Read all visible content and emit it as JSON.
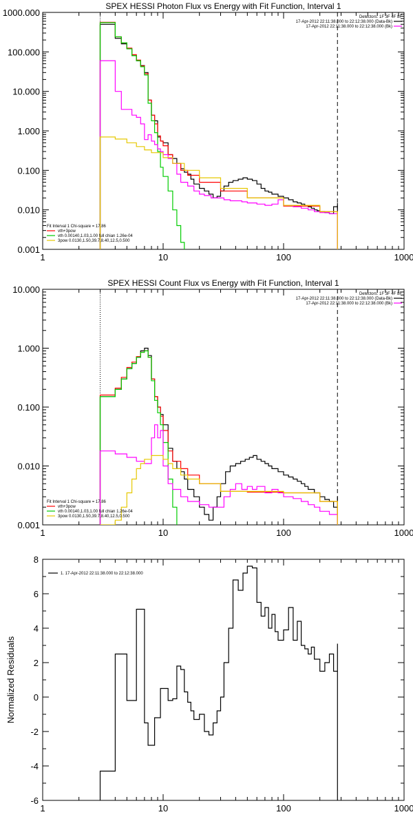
{
  "chart_data": [
    {
      "type": "line",
      "title": "SPEX HESSI Photon Flux vs Energy with Fit Function, Interval 1",
      "x_scale": "log",
      "y_scale": "log",
      "xlim": [
        1,
        1000
      ],
      "ylim": [
        0.001,
        1000
      ],
      "x_tick_labels": [
        "1",
        "10",
        "100",
        "1000"
      ],
      "y_tick_labels": [
        "0.001",
        "0.010",
        "0.100",
        "1.000",
        "10.000",
        "100.000",
        "1000.000"
      ],
      "legend_top_right": {
        "detectors": "Detectors: 1F 3F 4F 8F",
        "entries": [
          {
            "text": "17-Apr-2012 22:11:38.000 to 22:12:38.000 (Data-Bk)",
            "color": "#000000"
          },
          {
            "text": "17-Apr-2012 22:11:38.000 to 22:12:38.000 (Bk)",
            "color": "#ff00ff"
          }
        ]
      },
      "legend_bottom_left": {
        "header": "Fit Interval 1    Chi-square = 17.86",
        "entries": [
          {
            "text": "vth+3pow",
            "color": "#ff0000"
          },
          {
            "text": "vth 0.00140,1.03,1.00  full chian 1.26e-04",
            "color": "#00cc00"
          },
          {
            "text": "3pow 0.0130,1.50,39.7,8.40,12.5,0.500",
            "color": "#e6c800"
          }
        ]
      },
      "markers": {
        "dotted_x": 3.0,
        "dashed_x": 280
      },
      "series": [
        {
          "name": "17-Apr-2012 22:11:38.000 to 22:12:38.000 (Data-Bk)",
          "color": "#000000",
          "x": [
            3,
            3.5,
            4,
            4.5,
            5,
            5.5,
            6,
            6.5,
            7,
            7.5,
            8,
            8.5,
            9,
            9.5,
            10,
            11,
            12,
            13,
            14,
            15,
            16,
            17,
            18,
            20,
            22,
            24,
            26,
            28,
            30,
            32,
            35,
            38,
            42,
            46,
            50,
            55,
            60,
            65,
            70,
            75,
            80,
            90,
            100,
            110,
            120,
            130,
            140,
            150,
            160,
            170,
            180,
            190,
            200,
            220,
            240,
            260,
            280
          ],
          "y": [
            500,
            500,
            220,
            160,
            120,
            80,
            60,
            45,
            30,
            6,
            2.5,
            1.8,
            0.7,
            0.55,
            0.5,
            0.25,
            0.2,
            0.15,
            0.11,
            0.09,
            0.08,
            0.06,
            0.045,
            0.035,
            0.03,
            0.025,
            0.02,
            0.022,
            0.03,
            0.04,
            0.05,
            0.055,
            0.06,
            0.065,
            0.06,
            0.055,
            0.045,
            0.035,
            0.03,
            0.028,
            0.025,
            0.022,
            0.02,
            0.018,
            0.016,
            0.015,
            0.014,
            0.013,
            0.012,
            0.011,
            0.01,
            0.0095,
            0.009,
            0.0085,
            0.008,
            0.012,
            0.015
          ]
        },
        {
          "name": "vth+3pow",
          "color": "#ff0000",
          "x": [
            3,
            3.5,
            4,
            4.5,
            5,
            5.5,
            6,
            6.5,
            7,
            7.5,
            8,
            8.5,
            9,
            9.5,
            10,
            11,
            12,
            14,
            16,
            20,
            30,
            50,
            100,
            200,
            280
          ],
          "y": [
            560,
            560,
            240,
            170,
            125,
            85,
            62,
            44,
            28,
            6,
            2.5,
            1.5,
            0.75,
            0.55,
            0.42,
            0.25,
            0.15,
            0.1,
            0.075,
            0.05,
            0.03,
            0.02,
            0.0125,
            0.009,
            0.007
          ]
        },
        {
          "name": "vth",
          "color": "#00cc00",
          "x": [
            3,
            3.5,
            4,
            4.5,
            5,
            5.5,
            6,
            6.5,
            7,
            7.5,
            8,
            8.5,
            9,
            9.5,
            10,
            11,
            12,
            13,
            14,
            15
          ],
          "y": [
            550,
            550,
            240,
            170,
            120,
            80,
            60,
            42,
            26,
            5,
            1.8,
            0.9,
            0.3,
            0.12,
            0.07,
            0.03,
            0.01,
            0.004,
            0.0015,
            0.0009
          ]
        },
        {
          "name": "17-Apr-2012 22:11:38.000 to 22:12:38.000 (Bk)",
          "color": "#ff00ff",
          "x": [
            3,
            3.5,
            4,
            4.5,
            5,
            5.5,
            6,
            6.5,
            7,
            7.5,
            8,
            8.5,
            9,
            9.5,
            10,
            11,
            12,
            13,
            14,
            16,
            18,
            20,
            22,
            25,
            28,
            32,
            36,
            40,
            45,
            50,
            55,
            60,
            70,
            80,
            90,
            100,
            120,
            140,
            160,
            180,
            200,
            240,
            280
          ],
          "y": [
            60,
            60,
            10,
            3.5,
            3.5,
            2.5,
            2.2,
            1.5,
            0.6,
            0.8,
            0.55,
            0.45,
            0.35,
            0.3,
            0.25,
            0.2,
            0.15,
            0.08,
            0.05,
            0.04,
            0.03,
            0.025,
            0.023,
            0.02,
            0.02,
            0.018,
            0.017,
            0.017,
            0.016,
            0.015,
            0.015,
            0.014,
            0.013,
            0.014,
            0.018,
            0.013,
            0.012,
            0.011,
            0.01,
            0.009,
            0.0085,
            0.008,
            0.007
          ]
        },
        {
          "name": "3pow",
          "color": "#e6c800",
          "x": [
            3,
            3.5,
            4,
            5,
            6,
            7,
            8,
            10,
            12,
            15,
            20,
            30,
            50,
            100,
            200,
            280
          ],
          "y": [
            0.7,
            0.7,
            0.62,
            0.5,
            0.4,
            0.33,
            0.28,
            0.21,
            0.15,
            0.1,
            0.065,
            0.035,
            0.02,
            0.013,
            0.009,
            0.007
          ]
        }
      ]
    },
    {
      "type": "line",
      "title": "SPEX HESSI Count Flux vs Energy with Fit Function, Interval 1",
      "x_scale": "log",
      "y_scale": "log",
      "xlim": [
        1,
        1000
      ],
      "ylim": [
        0.001,
        10
      ],
      "x_tick_labels": [
        "1",
        "10",
        "100",
        "1000"
      ],
      "y_tick_labels": [
        "0.001",
        "0.010",
        "0.100",
        "1.000",
        "10.000"
      ],
      "legend_top_right": {
        "detectors": "Detectors: 1F 3F 4F 8F",
        "entries": [
          {
            "text": "17-Apr-2012 22:11:38.000 to 22:12:38.000 (Data-Bk)",
            "color": "#000000"
          },
          {
            "text": "17-Apr-2012 22:11:38.000 to 22:12:38.000 (Bk)",
            "color": "#ff00ff"
          }
        ]
      },
      "legend_bottom_left": {
        "header": "Fit Interval 1    Chi-square = 17.86",
        "entries": [
          {
            "text": "vth+3pow",
            "color": "#ff0000"
          },
          {
            "text": "vth 0.00140,1.03,1.00  full chian 1.26e-04",
            "color": "#00cc00"
          },
          {
            "text": "3pow 0.0130,1.50,39.7,8.40,12.5,0.500",
            "color": "#e6c800"
          }
        ]
      },
      "markers": {
        "dotted_x": 3.0,
        "dashed_x": 280
      },
      "series": [
        {
          "name": "17-Apr-2012 22:11:38.000 to 22:12:38.000 (Data-Bk)",
          "color": "#000000",
          "x": [
            3,
            3.5,
            4,
            4.5,
            5,
            5.5,
            6,
            6.5,
            7,
            7.5,
            8,
            8.5,
            9,
            9.5,
            10,
            11,
            12,
            13,
            14,
            15,
            16,
            18,
            20,
            22,
            24,
            26,
            28,
            30,
            33,
            36,
            40,
            44,
            48,
            52,
            56,
            60,
            65,
            70,
            75,
            80,
            90,
            100,
            110,
            120,
            130,
            140,
            150,
            160,
            180,
            200,
            220,
            240,
            260,
            280
          ],
          "y": [
            0.15,
            0.15,
            0.2,
            0.3,
            0.45,
            0.55,
            0.7,
            0.9,
            1.0,
            0.75,
            0.3,
            0.15,
            0.1,
            0.075,
            0.05,
            0.02,
            0.012,
            0.009,
            0.008,
            0.006,
            0.004,
            0.003,
            0.002,
            0.0015,
            0.0012,
            0.002,
            0.003,
            0.005,
            0.008,
            0.01,
            0.011,
            0.012,
            0.013,
            0.014,
            0.015,
            0.013,
            0.012,
            0.011,
            0.01,
            0.009,
            0.008,
            0.007,
            0.0065,
            0.006,
            0.0055,
            0.005,
            0.0045,
            0.004,
            0.0035,
            0.003,
            0.0027,
            0.0025,
            0.002,
            0.003
          ]
        },
        {
          "name": "vth+3pow",
          "color": "#ff0000",
          "x": [
            3,
            3.5,
            4,
            4.5,
            5,
            5.5,
            6,
            6.5,
            7,
            7.5,
            8,
            8.5,
            9,
            9.5,
            10,
            11,
            12,
            14,
            16,
            20,
            30,
            50,
            100,
            200,
            280
          ],
          "y": [
            0.16,
            0.16,
            0.21,
            0.32,
            0.47,
            0.58,
            0.72,
            0.85,
            0.9,
            0.7,
            0.3,
            0.15,
            0.1,
            0.07,
            0.04,
            0.018,
            0.012,
            0.009,
            0.007,
            0.005,
            0.0037,
            0.0036,
            0.0035,
            0.0025,
            0.0015
          ]
        },
        {
          "name": "vth",
          "color": "#00cc00",
          "x": [
            3,
            3.5,
            4,
            4.5,
            5,
            5.5,
            6,
            6.5,
            7,
            7.5,
            8,
            8.5,
            9,
            9.5,
            10,
            11,
            12,
            13
          ],
          "y": [
            0.15,
            0.15,
            0.2,
            0.3,
            0.45,
            0.55,
            0.7,
            0.85,
            0.9,
            0.7,
            0.28,
            0.13,
            0.08,
            0.05,
            0.025,
            0.006,
            0.002,
            0.0009
          ]
        },
        {
          "name": "17-Apr-2012 22:11:38.000 to 22:12:38.000 (Bk)",
          "color": "#ff00ff",
          "x": [
            3,
            3.5,
            4,
            5,
            6,
            7,
            8,
            8.5,
            9,
            9.5,
            10,
            11,
            12,
            14,
            16,
            18,
            20,
            24,
            28,
            32,
            36,
            40,
            45,
            50,
            55,
            60,
            70,
            80,
            90,
            100,
            120,
            140,
            160,
            180,
            200,
            240,
            280
          ],
          "y": [
            0.018,
            0.018,
            0.016,
            0.014,
            0.012,
            0.011,
            0.03,
            0.05,
            0.03,
            0.04,
            0.01,
            0.005,
            0.004,
            0.003,
            0.0025,
            0.0025,
            0.0022,
            0.002,
            0.002,
            0.003,
            0.004,
            0.005,
            0.004,
            0.0045,
            0.004,
            0.0045,
            0.0035,
            0.004,
            0.0035,
            0.003,
            0.0028,
            0.0025,
            0.0022,
            0.002,
            0.0017,
            0.0015,
            0.0012
          ]
        },
        {
          "name": "3pow",
          "color": "#e6c800",
          "x": [
            3,
            3.5,
            4,
            4.5,
            5,
            5.5,
            6,
            6.5,
            7,
            8,
            9,
            10,
            11,
            12,
            14,
            16,
            20,
            30,
            50,
            100,
            200,
            280
          ],
          "y": [
            0.0008,
            0.0008,
            0.0012,
            0.002,
            0.0035,
            0.006,
            0.009,
            0.011,
            0.013,
            0.015,
            0.015,
            0.013,
            0.011,
            0.009,
            0.007,
            0.006,
            0.005,
            0.0037,
            0.0037,
            0.0035,
            0.0025,
            0.0015
          ]
        }
      ]
    },
    {
      "type": "line",
      "ylabel": "Normalized Residuals",
      "x_scale": "log",
      "xlim": [
        1,
        1000
      ],
      "ylim": [
        -6,
        8
      ],
      "x_tick_labels": [
        "1",
        "10",
        "100",
        "1000"
      ],
      "y_tick_labels": [
        "-6",
        "-4",
        "-2",
        "0",
        "2",
        "4",
        "6",
        "8"
      ],
      "y_ticks": [
        -6,
        -4,
        -2,
        0,
        2,
        4,
        6,
        8
      ],
      "legend": {
        "text": "1. 17-Apr-2012 22:11:38.000 to 22:12:38.000",
        "color": "#000000"
      },
      "series": [
        {
          "name": "1. 17-Apr-2012 22:11:38.000 to 22:12:38.000",
          "color": "#000000",
          "x": [
            3,
            3.5,
            4,
            4.5,
            5,
            5.5,
            6,
            6.5,
            7,
            7.5,
            8,
            8.5,
            9,
            9.5,
            10,
            11,
            12,
            13,
            14,
            15,
            16,
            17,
            18,
            20,
            22,
            24,
            26,
            28,
            30,
            32,
            35,
            38,
            42,
            46,
            50,
            55,
            60,
            65,
            70,
            75,
            80,
            85,
            90,
            100,
            110,
            120,
            130,
            140,
            150,
            160,
            170,
            180,
            200,
            220,
            240,
            260,
            280
          ],
          "y": [
            -4.3,
            -4.3,
            2.5,
            2.5,
            -0.2,
            -0.2,
            5.1,
            5.1,
            -1.5,
            -2.8,
            -2.8,
            -1.2,
            -1.2,
            0.5,
            0.5,
            -0.2,
            -0.1,
            1.8,
            1.6,
            0.3,
            -0.3,
            -0.8,
            -1.3,
            -1.0,
            -2.0,
            -2.2,
            -1.5,
            -0.8,
            0.0,
            2.0,
            4.0,
            6.8,
            6.2,
            7.2,
            7.6,
            7.5,
            5.5,
            4.7,
            5.2,
            4.0,
            4.8,
            3.8,
            3.3,
            3.9,
            5.2,
            3.3,
            4.4,
            3.0,
            2.8,
            2.5,
            2.9,
            2.2,
            1.5,
            2.0,
            2.5,
            1.5,
            3.1
          ]
        }
      ]
    }
  ]
}
